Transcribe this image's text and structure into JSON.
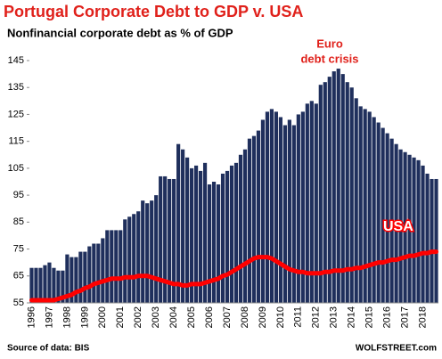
{
  "chart_data": {
    "type": "bar",
    "title": "Portugal Corporate  Debt to GDP v. USA",
    "subtitle": "Nonfinancial corporate debt as % of GDP",
    "categories": [
      "1996",
      null,
      null,
      null,
      "1997",
      null,
      null,
      null,
      "1998",
      null,
      null,
      null,
      "1999",
      null,
      null,
      null,
      "2000",
      null,
      null,
      null,
      "2001",
      null,
      null,
      null,
      "2002",
      null,
      null,
      null,
      "2003",
      null,
      null,
      null,
      "2004",
      null,
      null,
      null,
      "2005",
      null,
      null,
      null,
      "2006",
      null,
      null,
      null,
      "2007",
      null,
      null,
      null,
      "2008",
      null,
      null,
      null,
      "2009",
      null,
      null,
      null,
      "2010",
      null,
      null,
      null,
      "2011",
      null,
      null,
      null,
      "2012",
      null,
      null,
      null,
      "2013",
      null,
      null,
      null,
      "2014",
      null,
      null,
      null,
      "2015",
      null,
      null,
      null,
      "2016",
      null,
      null,
      null,
      "2017",
      null,
      null,
      null,
      "2018",
      null,
      null,
      null
    ],
    "series": [
      {
        "type": "bar",
        "color": "#1f2f5c",
        "values": [
          68,
          68,
          68,
          69,
          70,
          68,
          67,
          67,
          73,
          72,
          72,
          74,
          74,
          76,
          77,
          77,
          79,
          82,
          82,
          82,
          82,
          86,
          87,
          88,
          89,
          93,
          92,
          93,
          95,
          102,
          102,
          101,
          101,
          114,
          112,
          109,
          105,
          106,
          104,
          107,
          99,
          100,
          99,
          103,
          104,
          106,
          107,
          110,
          112,
          116,
          117,
          119,
          123,
          126,
          127,
          126,
          124,
          121,
          123,
          121,
          125,
          126,
          129,
          130,
          129,
          136,
          137,
          139,
          141,
          142,
          140,
          137,
          135,
          131,
          128,
          127,
          126,
          124,
          122,
          120,
          118,
          116,
          114,
          112,
          111,
          110,
          109,
          108,
          106,
          103,
          101,
          101
        ]
      },
      {
        "type": "line",
        "name": "USA",
        "color": "#ff0000",
        "values": [
          56,
          56,
          56,
          56,
          56,
          56,
          56.5,
          57,
          57.5,
          58,
          59,
          59.5,
          60.5,
          61,
          62,
          62.5,
          63,
          63.5,
          64,
          64,
          64,
          64.5,
          64.5,
          64.5,
          65,
          65,
          65,
          64.5,
          64,
          63.5,
          63,
          62.5,
          62,
          62,
          61.5,
          61.5,
          62,
          62,
          62,
          62.5,
          63,
          63.5,
          64,
          65,
          65.5,
          66.5,
          67.5,
          68.5,
          69.5,
          70.5,
          71.5,
          72,
          72,
          72,
          71.5,
          70.5,
          69.5,
          68.5,
          67.5,
          67,
          66.5,
          66.5,
          66,
          66,
          66,
          66,
          66.5,
          66.5,
          67,
          67,
          67,
          67.5,
          67.5,
          68,
          68,
          68.5,
          69,
          69.5,
          70,
          70,
          70.5,
          71,
          71,
          71.5,
          72,
          72.5,
          72.5,
          73,
          73.5,
          73.5,
          74,
          74
        ]
      }
    ],
    "ylim": [
      55,
      145
    ],
    "yticks": [
      55,
      65,
      75,
      85,
      95,
      105,
      115,
      125,
      135,
      145
    ],
    "annotations": [
      "Euro",
      "debt crisis"
    ],
    "source": "Source of data: BIS",
    "credit": "WOLFSTREET.com"
  }
}
